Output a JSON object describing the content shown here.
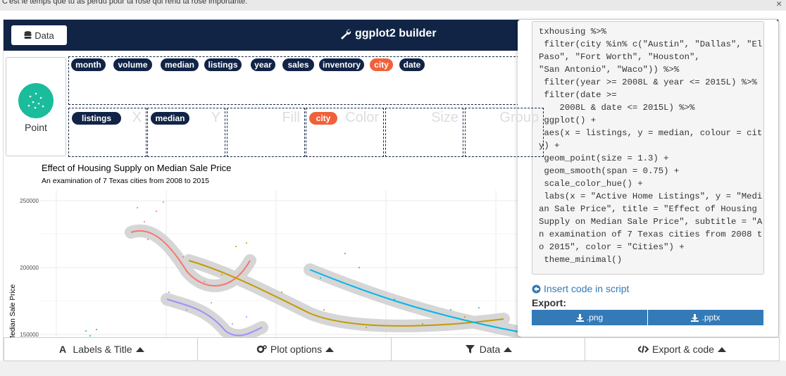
{
  "banner": {
    "text": "C'est le temps que tu as perdu pour ta rose qui rend ta rose importante.",
    "close": "×"
  },
  "header": {
    "data_button": "Data",
    "title": "ggplot2 builder"
  },
  "geom": {
    "label": "Point"
  },
  "variables": [
    "month",
    "volume",
    "median",
    "listings",
    "year",
    "sales",
    "inventory",
    "city",
    "date"
  ],
  "dropzones": [
    {
      "label": "X",
      "value": "listings"
    },
    {
      "label": "Y",
      "value": "median"
    },
    {
      "label": "Fill"
    },
    {
      "label": "Color",
      "value": "city"
    },
    {
      "label": "Size"
    },
    {
      "label": "Group"
    }
  ],
  "plot": {
    "title": "Effect of Housing Supply on Median Sale Price",
    "subtitle": "An examination of 7 Texas cities from 2008 to 2015",
    "y_label": "Median Sale Price",
    "yticks": [
      "250000",
      "200000",
      "150000"
    ]
  },
  "code": {
    "lines": [
      "txhousing %>%",
      " filter(city %in% c(\"Austin\", \"Dallas\", \"El",
      "Paso\", \"Fort Worth\", \"Houston\",",
      "\"San Antonio\", \"Waco\")) %>%",
      " filter(year >= 2008L & year <= 2015L) %>%",
      " filter(date >=",
      "    2008L & date <= 2015L) %>%",
      " ggplot() +",
      " aes(x = listings, y = median, colour = cit",
      "y) +",
      " geom_point(size = 1.3) +",
      " geom_smooth(span = 0.75) +",
      " scale_color_hue() +",
      " labs(x = \"Active Home Listings\", y = \"Medi",
      "an Sale Price\", title = \"Effect of Housing",
      "Supply on Median Sale Price\", subtitle = \"A",
      "n examination of 7 Texas cities from 2008 t",
      "o 2015\", color = \"Cities\") +",
      " theme_minimal()"
    ],
    "insert_link": "Insert code in script",
    "export_label": "Export:",
    "export_buttons": [
      ".png",
      ".pptx"
    ]
  },
  "tabs": [
    "Labels & Title",
    "Plot options",
    "Data",
    "Export & code"
  ]
}
